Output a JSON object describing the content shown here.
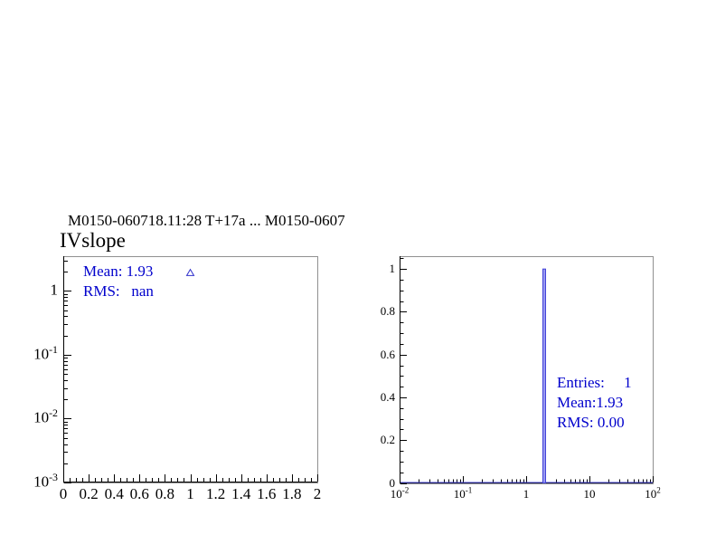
{
  "header": {
    "title": "M0150-060718.11:28 T+17a ... M0150-0607"
  },
  "colors": {
    "stats_text": "#0000cc",
    "marker_blue": "#3333cc",
    "bar_fill": "#9a9af0",
    "bar_edge": "#4343d8",
    "frame_gray": "#909090",
    "axis_black": "#000000"
  },
  "chart_data": [
    {
      "type": "scatter",
      "title": "IVslope",
      "x_axis": {
        "scale": "linear",
        "min": 0,
        "max": 2,
        "ticks": [
          0,
          0.2,
          0.4,
          0.6,
          0.8,
          1,
          1.2,
          1.4,
          1.6,
          1.8,
          2
        ],
        "tick_labels": [
          "0",
          "0.2",
          "0.4",
          "0.6",
          "0.8",
          "1",
          "1.2",
          "1.4",
          "1.6",
          "1.8",
          "2"
        ],
        "minor_step": 0.05
      },
      "y_axis": {
        "scale": "log",
        "min": 0.001,
        "max": 3.5,
        "ticks": [
          1,
          0.1,
          0.01,
          0.001
        ],
        "tick_labels": [
          "1",
          "10^-1",
          "10^-2",
          "10^-3"
        ]
      },
      "points": [
        {
          "x": 1,
          "y": 1.93
        }
      ],
      "marker": "open-triangle",
      "series_color": "#3333cc",
      "stats_lines": [
        "Mean: 1.93",
        "RMS:   nan"
      ],
      "stats_color": "#0000cc",
      "legend": "none",
      "grid": false
    },
    {
      "type": "bar",
      "title": "",
      "x_axis": {
        "scale": "log",
        "min": 0.01,
        "max": 100,
        "ticks": [
          0.01,
          0.1,
          1,
          10,
          100
        ],
        "tick_labels": [
          "10^-2",
          "10^-1",
          "1",
          "10",
          "10^2"
        ]
      },
      "y_axis": {
        "scale": "linear",
        "min": 0,
        "max": 1.06,
        "ticks": [
          0,
          0.2,
          0.4,
          0.6,
          0.8,
          1
        ],
        "tick_labels": [
          "0",
          "0.2",
          "0.4",
          "0.6",
          "0.8",
          "1"
        ],
        "minor_step": 0.05
      },
      "bars": [
        {
          "x": 1.93,
          "height": 1.0
        }
      ],
      "bar_fill": "#9a9af0",
      "bar_edge": "#4343d8",
      "stats_lines": [
        "Entries:     1",
        "Mean:1.93",
        "RMS: 0.00"
      ],
      "stats_color": "#0000cc",
      "legend": "none",
      "grid": false
    }
  ]
}
